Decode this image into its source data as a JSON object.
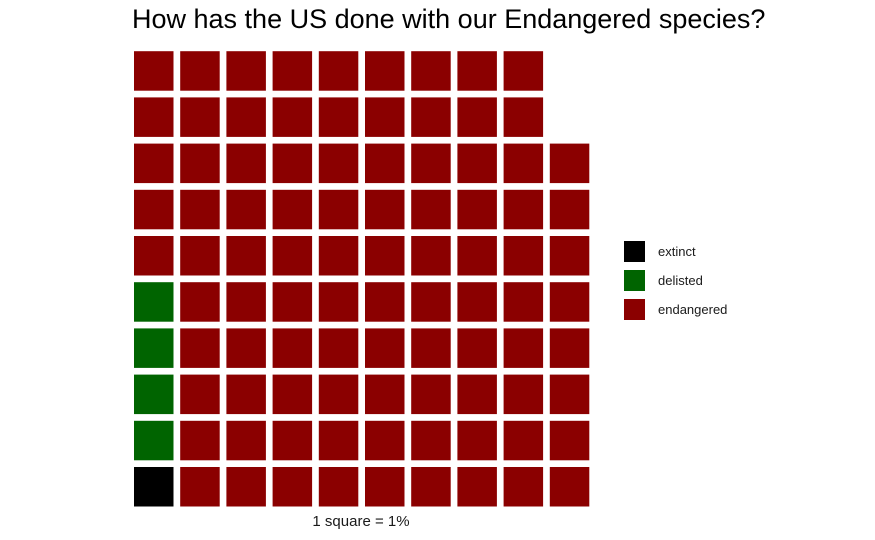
{
  "chart_data": {
    "type": "waffle",
    "title": "How has the US done with our Endangered species?",
    "caption": "1 square = 1%",
    "categories": [
      "extinct",
      "delisted",
      "endangered"
    ],
    "values": [
      1,
      4,
      93
    ],
    "colors": {
      "extinct": "#000000",
      "delisted": "#006400",
      "endangered": "#8b0000"
    },
    "grid": {
      "columns": 10,
      "rows": 10,
      "fill_order": "column-major-bottom-up"
    },
    "legend": {
      "position": "right"
    }
  }
}
